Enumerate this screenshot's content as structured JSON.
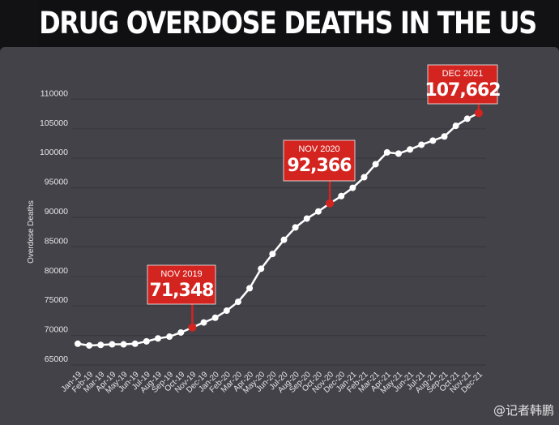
{
  "title": "DRUG OVERDOSE DEATHS IN THE US",
  "watermark": "@记者韩鹏",
  "colors": {
    "background": "#434249",
    "line": "#ffffff",
    "callout": "#d42420",
    "grid": "#38373d"
  },
  "chart_data": {
    "type": "line",
    "title": "DRUG OVERDOSE DEATHS IN THE US",
    "xlabel": "",
    "ylabel": "Overdose Deaths",
    "ylim": [
      65000,
      110000
    ],
    "yticks": [
      "65000",
      "70000",
      "75000",
      "80000",
      "85000",
      "90000",
      "95000",
      "100000",
      "105000",
      "110000"
    ],
    "grid": "horizontal",
    "categories": [
      "Jan-19",
      "Feb-19",
      "Mar-19",
      "Apr-19",
      "May-19",
      "Jun-19",
      "Jul-19",
      "Aug-19",
      "Sep-19",
      "Oct-19",
      "Nov-19",
      "Dec-19",
      "Jan-20",
      "Feb-20",
      "Mar-20",
      "Apr-20",
      "May-20",
      "Jun-20",
      "Jul-20",
      "Aug-20",
      "Sep-20",
      "Oct-20",
      "Nov-20",
      "Dec-20",
      "Jan-21",
      "Feb-21",
      "Mar-21",
      "Apr-21",
      "May-21",
      "Jun-21",
      "Jul-21",
      "Aug-21",
      "Sep-21",
      "Oct-21",
      "Nov-21",
      "Dec-21"
    ],
    "values": [
      68600,
      68300,
      68400,
      68500,
      68500,
      68600,
      69000,
      69500,
      69800,
      70500,
      71348,
      72200,
      73000,
      74200,
      75700,
      78000,
      81300,
      83800,
      86200,
      88300,
      89800,
      91000,
      92366,
      93600,
      95000,
      96800,
      99000,
      101000,
      100800,
      101500,
      102300,
      103000,
      103700,
      105500,
      106700,
      107662
    ],
    "annotations": [
      {
        "index": 10,
        "label": "NOV 2019",
        "value": "71,348"
      },
      {
        "index": 22,
        "label": "NOV 2020",
        "value": "92,366"
      },
      {
        "index": 35,
        "label": "DEC 2021",
        "value": "107,662"
      }
    ]
  }
}
